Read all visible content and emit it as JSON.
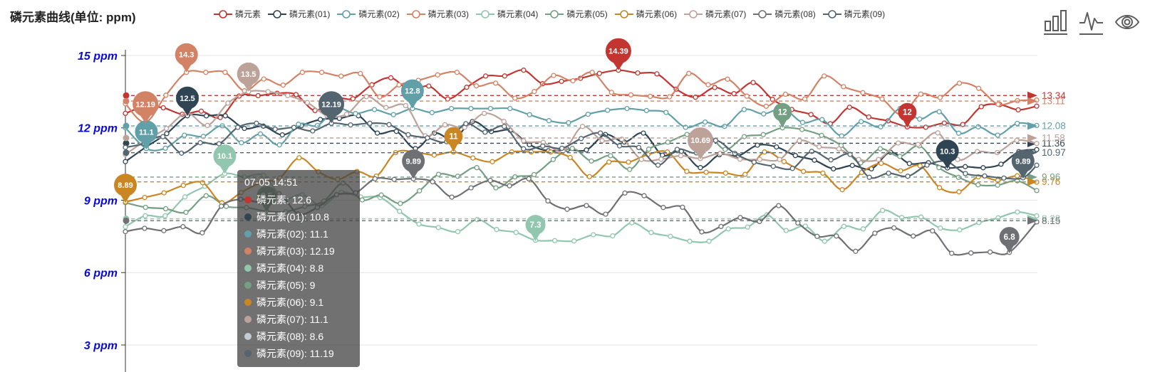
{
  "title": "磷元素曲线(单位: ppm)",
  "y_axis": {
    "labels": [
      "15 ppm",
      "12 ppm",
      "9 ppm",
      "6 ppm",
      "3 ppm"
    ],
    "values": [
      15,
      12,
      9,
      6,
      3
    ],
    "unit": "ppm",
    "label_color": "#0a0ad8"
  },
  "legend": {
    "items": [
      {
        "label": "磷元素",
        "color": "#c23531"
      },
      {
        "label": "磷元素(01)",
        "color": "#2f4554"
      },
      {
        "label": "磷元素(02)",
        "color": "#61a0a8"
      },
      {
        "label": "磷元素(03)",
        "color": "#d48265"
      },
      {
        "label": "磷元素(04)",
        "color": "#91c7ae"
      },
      {
        "label": "磷元素(05)",
        "color": "#749f83"
      },
      {
        "label": "磷元素(06)",
        "color": "#ca8622"
      },
      {
        "label": "磷元素(07)",
        "color": "#bda29a"
      },
      {
        "label": "磷元素(08)",
        "color": "#6e7074"
      },
      {
        "label": "磷元素(09)",
        "color": "#546570"
      }
    ]
  },
  "toolbox": {
    "icons": [
      "bar-chart-icon",
      "line-chart-icon",
      "eye-icon"
    ]
  },
  "tooltip": {
    "header": "07-05 14:51",
    "rows": [
      {
        "name": "磷元素",
        "value": "12.6",
        "marker_color": "#c23531"
      },
      {
        "name": "磷元素(01)",
        "value": "10.8",
        "marker_color": "#2f4554"
      },
      {
        "name": "磷元素(02)",
        "value": "11.1",
        "marker_color": "#61a0a8"
      },
      {
        "name": "磷元素(03)",
        "value": "12.19",
        "marker_color": "#d48265"
      },
      {
        "name": "磷元素(04)",
        "value": "8.8",
        "marker_color": "#91c7ae"
      },
      {
        "name": "磷元素(05)",
        "value": "9",
        "marker_color": "#749f83"
      },
      {
        "name": "磷元素(06)",
        "value": "9.1",
        "marker_color": "#ca8622"
      },
      {
        "name": "磷元素(07)",
        "value": "11.1",
        "marker_color": "#bda29a"
      },
      {
        "name": "磷元素(08)",
        "value": "8.6",
        "marker_color": "#c4ccd3"
      },
      {
        "name": "磷元素(09)",
        "value": "11.19",
        "marker_color": "#546570"
      }
    ]
  },
  "chart_data": {
    "type": "line",
    "title": "磷元素曲线(单位: ppm)",
    "ylabel": "ppm",
    "ylim": [
      3,
      15
    ],
    "grid": true,
    "legend_position": "top",
    "cursor_time": "07-05 14:51",
    "series": [
      {
        "name": "磷元素",
        "color": "#c23531",
        "start": 12.6,
        "end": 12.9,
        "cursor_value": 12.6,
        "average": 13.34,
        "avg_label": "13.34",
        "max": {
          "value": 14.39,
          "label": "14.39",
          "x_frac": 0.541
        },
        "min": {
          "value": 12,
          "label": "12",
          "x_frac": 0.858
        }
      },
      {
        "name": "磷元素(01)",
        "color": "#2f4554",
        "start": 10.6,
        "end": 11.1,
        "cursor_value": 10.8,
        "average": 11.36,
        "avg_label": "11.36",
        "max": {
          "value": 12.5,
          "label": "12.5",
          "x_frac": 0.068
        },
        "min": {
          "value": 10.3,
          "label": "10.3",
          "x_frac": 0.902
        }
      },
      {
        "name": "磷元素(02)",
        "color": "#61a0a8",
        "start": 12.0,
        "end": 12.1,
        "cursor_value": 11.1,
        "average": 12.08,
        "avg_label": "12.08",
        "max": {
          "value": 12.8,
          "label": "12.8",
          "x_frac": 0.315
        },
        "min": {
          "value": 11.1,
          "label": "11.1",
          "x_frac": 0.023
        }
      },
      {
        "name": "磷元素(03)",
        "color": "#d48265",
        "start": 13.0,
        "end": 13.15,
        "cursor_value": 12.19,
        "average": 13.11,
        "avg_label": "13.11",
        "max": {
          "value": 14.3,
          "label": "14.3",
          "x_frac": 0.067
        },
        "min": {
          "value": 12.19,
          "label": "12.19",
          "x_frac": 0.022
        }
      },
      {
        "name": "磷元素(04)",
        "color": "#91c7ae",
        "start": 7.9,
        "end": 8.35,
        "cursor_value": 8.8,
        "average": 8.23,
        "avg_label": "8.23",
        "max": {
          "value": 10.1,
          "label": "10.1",
          "x_frac": 0.109
        },
        "min": {
          "value": 7.3,
          "label": "7.3",
          "x_frac": 0.45
        }
      },
      {
        "name": "磷元素(05)",
        "color": "#749f83",
        "start": 8.9,
        "end": 9.4,
        "cursor_value": 9,
        "average": 9.96,
        "avg_label": "9.96",
        "max": {
          "value": 12,
          "label": "12",
          "x_frac": 0.721
        },
        "min": {
          "value": 8.5,
          "label": "8.5",
          "x_frac": 0.155
        }
      },
      {
        "name": "磷元素(06)",
        "color": "#ca8622",
        "start": 8.89,
        "end": 9.75,
        "cursor_value": 9.1,
        "average": 9.76,
        "avg_label": "9.76",
        "max": {
          "value": 11,
          "label": "11",
          "x_frac": 0.36
        },
        "min": {
          "value": 8.89,
          "label": "8.89",
          "x_frac": 0.0
        }
      },
      {
        "name": "磷元素(07)",
        "color": "#bda29a",
        "start": 10.9,
        "end": 11.35,
        "cursor_value": 11.1,
        "average": 11.58,
        "avg_label": "11.58",
        "max": {
          "value": 13.5,
          "label": "13.5",
          "x_frac": 0.135
        },
        "min": {
          "value": 10.69,
          "label": "10.69",
          "x_frac": 0.631
        }
      },
      {
        "name": "磷元素(08)",
        "color": "#6e7074",
        "start": 7.7,
        "end": 8.1,
        "cursor_value": 8.6,
        "average": 8.15,
        "avg_label": "8.15",
        "max": {
          "value": 9.89,
          "label": "9.89",
          "x_frac": 0.316
        },
        "min": {
          "value": 6.8,
          "label": "6.8",
          "x_frac": 0.97
        }
      },
      {
        "name": "磷元素(09)",
        "color": "#546570",
        "start": 11.19,
        "end": 10.45,
        "cursor_value": 11.19,
        "average": 10.97,
        "avg_label": "10.97",
        "max": {
          "value": 12.19,
          "label": "12.19",
          "x_frac": 0.226
        },
        "min": {
          "value": 9.89,
          "label": "9.89",
          "x_frac": 0.985
        }
      }
    ]
  }
}
